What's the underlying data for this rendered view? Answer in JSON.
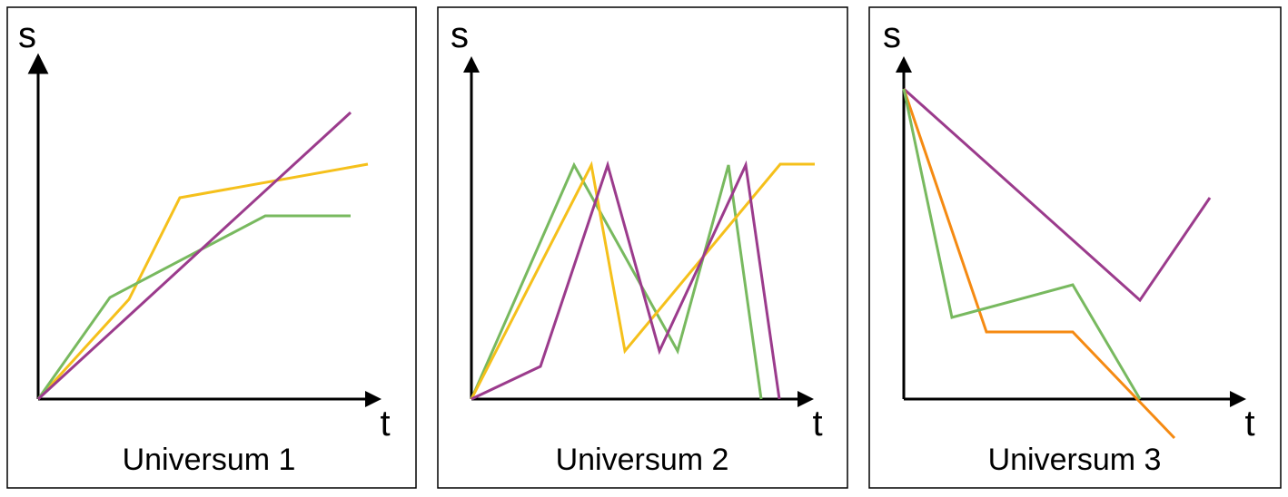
{
  "panels": [
    {
      "y_axis_label": "s",
      "x_axis_label": "t",
      "caption": "Universum 1"
    },
    {
      "y_axis_label": "s",
      "x_axis_label": "t",
      "caption": "Universum 2"
    },
    {
      "y_axis_label": "s",
      "x_axis_label": "t",
      "caption": "Universum 3"
    }
  ]
}
